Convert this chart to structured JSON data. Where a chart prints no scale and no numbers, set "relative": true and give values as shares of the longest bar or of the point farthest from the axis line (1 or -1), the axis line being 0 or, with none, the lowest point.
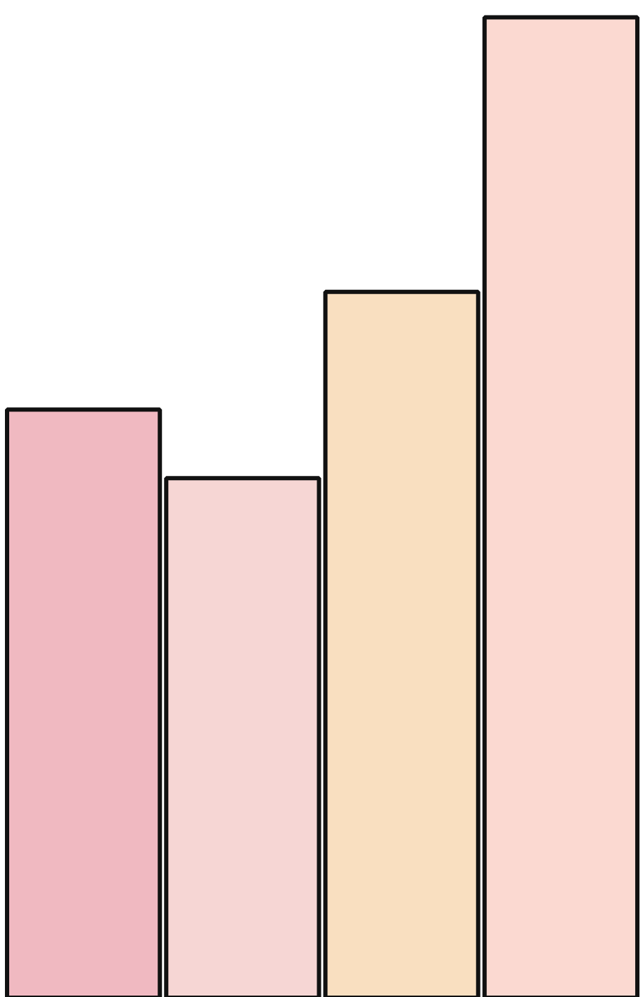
{
  "chart_data": {
    "type": "bar",
    "relative": true,
    "categories": [
      null,
      null,
      null,
      null
    ],
    "values": [
      0.6,
      0.53,
      0.72,
      1.0
    ],
    "colors": [
      "#f0b9c1",
      "#f6d6d4",
      "#f9dfc0",
      "#fbd9d1"
    ]
  }
}
